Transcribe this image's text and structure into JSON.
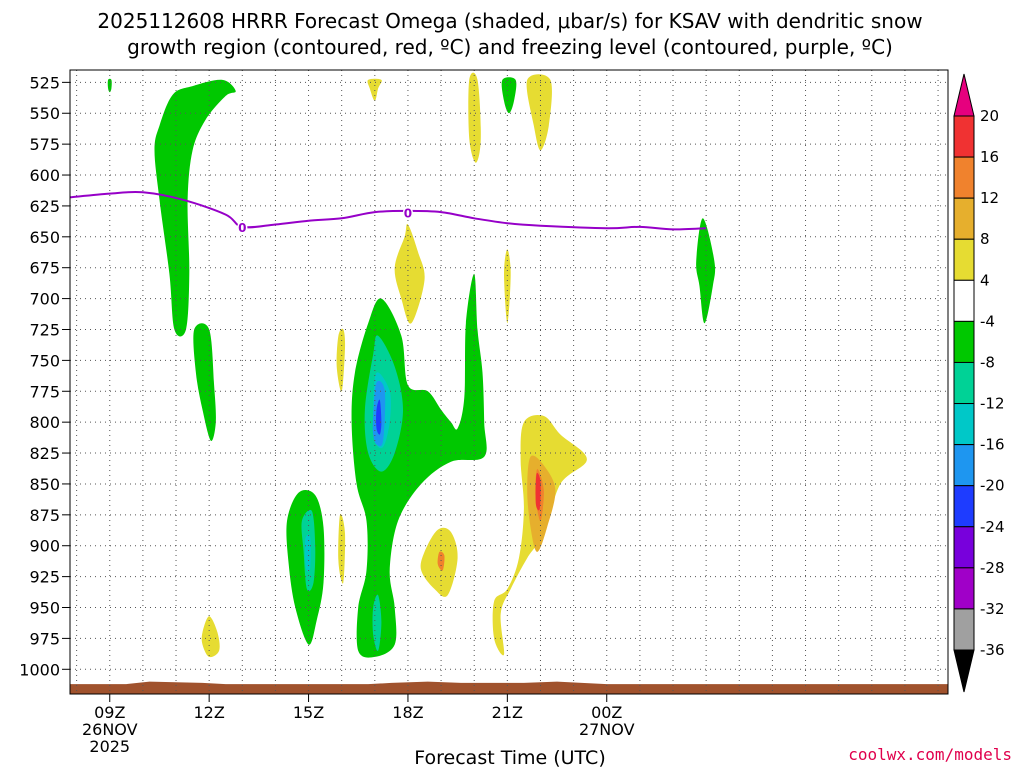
{
  "chart_data": {
    "type": "time-height contour",
    "title_line1": "2025112608 HRRR Forecast Omega (shaded, μbar/s) for KSAV with dendritic snow",
    "title_line2": "growth region (contoured, red, ºC) and freezing level (contoured, purple, ºC)",
    "xlabel": "Forecast Time (UTC)",
    "credit": "coolwx.com/models",
    "x_range_hours": [
      7.8,
      34.3
    ],
    "y_range_hpa": [
      515,
      1020
    ],
    "y_ticks": [
      525,
      550,
      575,
      600,
      625,
      650,
      675,
      700,
      725,
      750,
      775,
      800,
      825,
      850,
      875,
      900,
      925,
      950,
      975,
      1000
    ],
    "x_ticks": [
      {
        "hour": 9,
        "lines": [
          "09Z",
          "26NOV",
          "2025"
        ]
      },
      {
        "hour": 12,
        "lines": [
          "12Z"
        ]
      },
      {
        "hour": 15,
        "lines": [
          "15Z"
        ]
      },
      {
        "hour": 18,
        "lines": [
          "18Z"
        ]
      },
      {
        "hour": 21,
        "lines": [
          "21Z"
        ]
      },
      {
        "hour": 24,
        "lines": [
          "00Z",
          "27NOV"
        ]
      }
    ],
    "colorbar": {
      "labels": [
        "20",
        "16",
        "12",
        "8",
        "4",
        "-4",
        "-8",
        "-12",
        "-16",
        "-20",
        "-24",
        "-28",
        "-32",
        "-36"
      ],
      "colors": [
        "#e6007e",
        "#f03232",
        "#f0822d",
        "#e6af2d",
        "#e6dc32",
        "#ffffff",
        "#00c800",
        "#00d296",
        "#00c8c8",
        "#1e96f0",
        "#1e3cff",
        "#7800dc",
        "#a000c8",
        "#a0a0a0",
        "#000000"
      ]
    },
    "freezing_level": {
      "color": "#9600c8",
      "label": "0",
      "label_points": [
        {
          "hour": 13,
          "hpa": 643
        },
        {
          "hour": 18,
          "hpa": 631
        }
      ],
      "points": [
        [
          7.8,
          618
        ],
        [
          9,
          615
        ],
        [
          10,
          614
        ],
        [
          11.2,
          620
        ],
        [
          12.5,
          632
        ],
        [
          13,
          642
        ],
        [
          14,
          640
        ],
        [
          15,
          637
        ],
        [
          16,
          635
        ],
        [
          17,
          630
        ],
        [
          18,
          629
        ],
        [
          19,
          630
        ],
        [
          20,
          635
        ],
        [
          21,
          639
        ],
        [
          22,
          641
        ],
        [
          24,
          643
        ],
        [
          25,
          642
        ],
        [
          26,
          644
        ],
        [
          27,
          643
        ]
      ]
    },
    "omega_regions": [
      {
        "level": -4,
        "color": "#00c800",
        "points": [
          [
            8.95,
            523
          ],
          [
            9.05,
            523
          ],
          [
            9.05,
            530
          ],
          [
            9.0,
            533
          ],
          [
            8.95,
            530
          ]
        ]
      },
      {
        "level": -4,
        "color": "#00c800",
        "points": [
          [
            12.4,
            523
          ],
          [
            11.5,
            528
          ],
          [
            10.9,
            535
          ],
          [
            10.5,
            560
          ],
          [
            10.35,
            580
          ],
          [
            10.5,
            620
          ],
          [
            10.8,
            680
          ],
          [
            10.95,
            725
          ],
          [
            11.3,
            725
          ],
          [
            11.4,
            680
          ],
          [
            11.35,
            620
          ],
          [
            11.5,
            580
          ],
          [
            11.9,
            555
          ],
          [
            12.5,
            536
          ],
          [
            12.8,
            532
          ]
        ]
      },
      {
        "level": -4,
        "color": "#00c800",
        "points": [
          [
            11.55,
            725
          ],
          [
            12.0,
            725
          ],
          [
            12.15,
            770
          ],
          [
            12.2,
            800
          ],
          [
            12.05,
            815
          ],
          [
            11.8,
            790
          ],
          [
            11.6,
            760
          ]
        ]
      },
      {
        "level": -4,
        "color": "#00c800",
        "points": [
          [
            14.35,
            880
          ],
          [
            14.7,
            857
          ],
          [
            15.2,
            859
          ],
          [
            15.45,
            885
          ],
          [
            15.45,
            930
          ],
          [
            15.25,
            960
          ],
          [
            15.0,
            980
          ],
          [
            14.6,
            950
          ],
          [
            14.4,
            915
          ]
        ]
      },
      {
        "level": -12,
        "color": "#00d296",
        "points": [
          [
            14.8,
            880
          ],
          [
            15.1,
            872
          ],
          [
            15.2,
            900
          ],
          [
            15.15,
            930
          ],
          [
            14.95,
            935
          ],
          [
            14.85,
            905
          ]
        ]
      },
      {
        "level": -16,
        "color": "#00c8c8",
        "points": [
          [
            14.9,
            895
          ],
          [
            15.05,
            893
          ],
          [
            15.05,
            918
          ],
          [
            14.92,
            918
          ]
        ]
      },
      {
        "level": -4,
        "color": "#00c800",
        "points": [
          [
            17.2,
            700
          ],
          [
            16.8,
            720
          ],
          [
            16.4,
            760
          ],
          [
            16.3,
            800
          ],
          [
            16.45,
            850
          ],
          [
            16.75,
            880
          ],
          [
            16.75,
            920
          ],
          [
            16.5,
            950
          ],
          [
            16.5,
            985
          ],
          [
            17.0,
            990
          ],
          [
            17.6,
            980
          ],
          [
            17.6,
            950
          ],
          [
            17.45,
            920
          ],
          [
            17.7,
            880
          ],
          [
            18.4,
            850
          ],
          [
            19.3,
            832
          ],
          [
            20.3,
            828
          ],
          [
            20.3,
            800
          ],
          [
            20.25,
            760
          ],
          [
            20.1,
            725
          ],
          [
            20.0,
            680
          ],
          [
            19.75,
            720
          ],
          [
            19.7,
            780
          ],
          [
            19.5,
            805
          ],
          [
            19.3,
            800
          ],
          [
            19.0,
            790
          ],
          [
            18.6,
            775
          ],
          [
            18.0,
            770
          ],
          [
            17.8,
            730
          ]
        ]
      },
      {
        "level": -8,
        "color": "#00d296",
        "points": [
          [
            16.7,
            790
          ],
          [
            16.95,
            745
          ],
          [
            17.1,
            730
          ],
          [
            17.6,
            755
          ],
          [
            17.85,
            790
          ],
          [
            17.6,
            825
          ],
          [
            17.2,
            840
          ],
          [
            16.8,
            825
          ]
        ]
      },
      {
        "level": -12,
        "color": "#00c8c8",
        "points": [
          [
            16.95,
            790
          ],
          [
            17.05,
            760
          ],
          [
            17.45,
            775
          ],
          [
            17.45,
            800
          ],
          [
            17.25,
            820
          ],
          [
            17.0,
            815
          ]
        ]
      },
      {
        "level": -16,
        "color": "#1e96f0",
        "points": [
          [
            16.95,
            795
          ],
          [
            17.05,
            768
          ],
          [
            17.3,
            775
          ],
          [
            17.25,
            815
          ],
          [
            17.05,
            818
          ],
          [
            16.95,
            810
          ]
        ]
      },
      {
        "level": -24,
        "color": "#1e3cff",
        "points": [
          [
            17.05,
            790
          ],
          [
            17.15,
            782
          ],
          [
            17.2,
            800
          ],
          [
            17.15,
            810
          ],
          [
            17.05,
            805
          ]
        ]
      },
      {
        "level": -8,
        "color": "#00d296",
        "points": [
          [
            16.95,
            950
          ],
          [
            17.1,
            940
          ],
          [
            17.2,
            962
          ],
          [
            17.1,
            985
          ],
          [
            16.95,
            972
          ]
        ]
      },
      {
        "level": -4,
        "color": "#00c800",
        "points": [
          [
            20.85,
            523
          ],
          [
            21.25,
            523
          ],
          [
            21.2,
            540
          ],
          [
            21.05,
            550
          ],
          [
            20.9,
            540
          ]
        ]
      },
      {
        "level": -4,
        "color": "#00c800",
        "points": [
          [
            26.9,
            635
          ],
          [
            27.25,
            670
          ],
          [
            27.2,
            690
          ],
          [
            26.95,
            720
          ],
          [
            26.8,
            690
          ],
          [
            26.7,
            670
          ]
        ]
      },
      {
        "level": 4,
        "color": "#e6dc32",
        "points": [
          [
            16.8,
            523
          ],
          [
            17.2,
            523
          ],
          [
            17.1,
            530
          ],
          [
            17.0,
            540
          ],
          [
            16.85,
            530
          ]
        ]
      },
      {
        "level": 4,
        "color": "#e6dc32",
        "points": [
          [
            19.85,
            523
          ],
          [
            20.1,
            523
          ],
          [
            20.2,
            570
          ],
          [
            20.05,
            590
          ],
          [
            19.85,
            570
          ]
        ]
      },
      {
        "level": 4,
        "color": "#e6dc32",
        "points": [
          [
            21.6,
            523
          ],
          [
            22.3,
            523
          ],
          [
            22.25,
            560
          ],
          [
            22.0,
            580
          ],
          [
            21.8,
            560
          ]
        ]
      },
      {
        "level": 4,
        "color": "#e6dc32",
        "points": [
          [
            18.0,
            640
          ],
          [
            18.3,
            662
          ],
          [
            18.5,
            685
          ],
          [
            18.1,
            720
          ],
          [
            17.8,
            700
          ],
          [
            17.6,
            675
          ],
          [
            17.9,
            650
          ]
        ]
      },
      {
        "level": 4,
        "color": "#e6dc32",
        "points": [
          [
            21.0,
            660
          ],
          [
            21.1,
            680
          ],
          [
            21.0,
            720
          ],
          [
            20.9,
            680
          ]
        ]
      },
      {
        "level": 4,
        "color": "#e6dc32",
        "points": [
          [
            15.9,
            730
          ],
          [
            16.05,
            725
          ],
          [
            16.1,
            740
          ],
          [
            16.0,
            775
          ],
          [
            15.85,
            755
          ]
        ]
      },
      {
        "level": 4,
        "color": "#e6dc32",
        "points": [
          [
            15.95,
            875
          ],
          [
            16.1,
            890
          ],
          [
            16.05,
            930
          ],
          [
            15.9,
            912
          ]
        ]
      },
      {
        "level": 4,
        "color": "#e6dc32",
        "points": [
          [
            18.5,
            905
          ],
          [
            18.9,
            887
          ],
          [
            19.3,
            889
          ],
          [
            19.5,
            910
          ],
          [
            19.2,
            940
          ],
          [
            18.8,
            935
          ],
          [
            18.4,
            920
          ]
        ]
      },
      {
        "level": 4,
        "color": "#e6dc32",
        "points": [
          [
            11.8,
            970
          ],
          [
            12.0,
            957
          ],
          [
            12.25,
            970
          ],
          [
            12.3,
            985
          ],
          [
            12.0,
            990
          ],
          [
            11.8,
            980
          ]
        ]
      },
      {
        "level": 4,
        "color": "#e6dc32",
        "points": [
          [
            21.5,
            800
          ],
          [
            22.1,
            795
          ],
          [
            22.6,
            810
          ],
          [
            23.4,
            830
          ],
          [
            22.6,
            850
          ],
          [
            22.1,
            890
          ],
          [
            21.6,
            910
          ],
          [
            21.1,
            935
          ],
          [
            20.8,
            955
          ],
          [
            20.9,
            988
          ],
          [
            20.6,
            975
          ],
          [
            20.6,
            945
          ],
          [
            21.0,
            935
          ],
          [
            21.35,
            910
          ],
          [
            21.5,
            870
          ],
          [
            21.4,
            830
          ]
        ]
      },
      {
        "level": 8,
        "color": "#e6af2d",
        "points": [
          [
            21.7,
            828
          ],
          [
            22.1,
            835
          ],
          [
            22.45,
            855
          ],
          [
            22.2,
            885
          ],
          [
            21.9,
            905
          ],
          [
            21.7,
            885
          ],
          [
            21.6,
            855
          ]
        ]
      },
      {
        "level": 12,
        "color": "#f0822d",
        "points": [
          [
            21.9,
            838
          ],
          [
            22.1,
            855
          ],
          [
            22.0,
            880
          ],
          [
            21.85,
            860
          ]
        ]
      },
      {
        "level": 4,
        "color": "#e6dc32",
        "points": [
          [
            19.0,
            900
          ],
          [
            19.15,
            905
          ],
          [
            19.05,
            918
          ],
          [
            18.95,
            910
          ]
        ]
      },
      {
        "level": 12,
        "color": "#f0822d",
        "points": [
          [
            18.95,
            905
          ],
          [
            19.1,
            908
          ],
          [
            19.05,
            920
          ],
          [
            18.9,
            915
          ]
        ]
      },
      {
        "level": 16,
        "color": "#f03232",
        "points": [
          [
            21.88,
            842
          ],
          [
            22.0,
            848
          ],
          [
            21.98,
            870
          ],
          [
            21.86,
            866
          ]
        ]
      }
    ],
    "terrain": {
      "color": "#a0522d",
      "points": [
        [
          7.8,
          1012
        ],
        [
          9.5,
          1012
        ],
        [
          10.2,
          1010
        ],
        [
          11.8,
          1011
        ],
        [
          12.5,
          1012
        ],
        [
          16.8,
          1012
        ],
        [
          17.5,
          1011
        ],
        [
          18.6,
          1010
        ],
        [
          19.6,
          1011
        ],
        [
          21.5,
          1011
        ],
        [
          22.5,
          1010
        ],
        [
          24.0,
          1012
        ],
        [
          34.3,
          1012
        ]
      ]
    }
  }
}
